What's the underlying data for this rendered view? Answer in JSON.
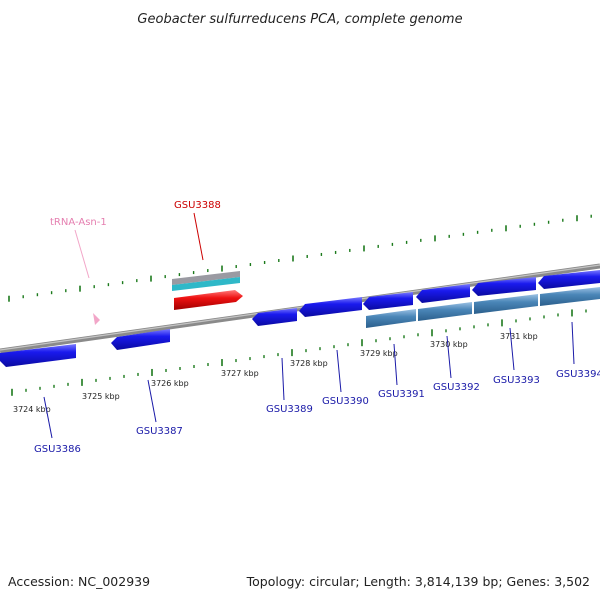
{
  "title": "Geobacter sulfurreducens PCA, complete genome",
  "footer": {
    "accession": "Accession: NC_002939",
    "summary": "Topology: circular; Length: 3,814,139 bp; Genes: 3,502"
  },
  "kbp_labels": [
    "3724 kbp",
    "3725 kbp",
    "3726 kbp",
    "3727 kbp",
    "3728 kbp",
    "3729 kbp",
    "3730 kbp",
    "3731 kbp"
  ],
  "genes": [
    {
      "id": "GSU3386",
      "strand": "minus"
    },
    {
      "id": "GSU3387",
      "strand": "minus"
    },
    {
      "id": "GSU3388",
      "strand": "plus",
      "highlighted": true
    },
    {
      "id": "GSU3389",
      "strand": "minus"
    },
    {
      "id": "GSU3390",
      "strand": "minus"
    },
    {
      "id": "GSU3391",
      "strand": "minus"
    },
    {
      "id": "GSU3392",
      "strand": "minus"
    },
    {
      "id": "GSU3393",
      "strand": "minus"
    },
    {
      "id": "GSU3394",
      "strand": "minus"
    }
  ],
  "trna": {
    "id": "tRNA-Asn-1"
  },
  "colors": {
    "backbone": "#8a8a8a",
    "gene": "#1414e0",
    "highlight": "#ee1111",
    "operon": "#4a86b8",
    "tick": "#1c7a1c",
    "trna": "#f2a6c8",
    "label": "#1a1aa8"
  }
}
